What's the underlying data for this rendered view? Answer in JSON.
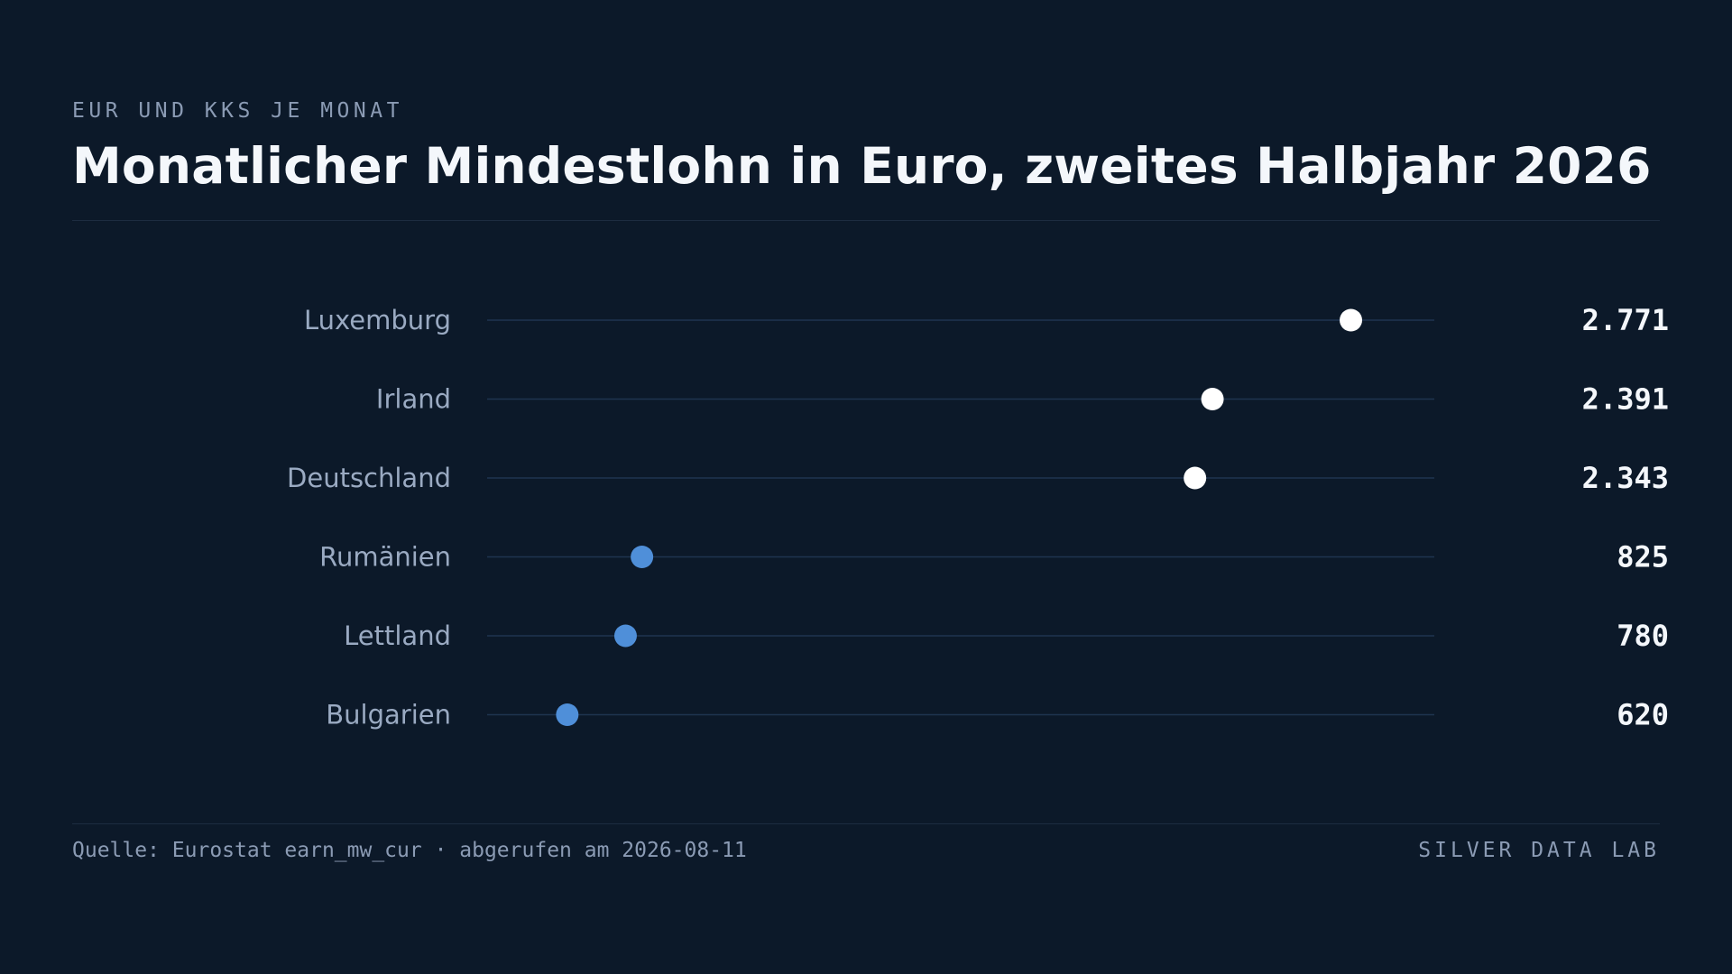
{
  "header": {
    "eyebrow": "EUR UND KKS JE MONAT",
    "title": "Monatlicher Mindestlohn in Euro, zweites Halbjahr 2026"
  },
  "chart_data": {
    "type": "dot",
    "categories": [
      "Luxemburg",
      "Irland",
      "Deutschland",
      "Rumänien",
      "Lettland",
      "Bulgarien"
    ],
    "values": [
      2771,
      2391,
      2343,
      825,
      780,
      620
    ],
    "value_labels": [
      "2.771",
      "2.391",
      "2.343",
      "825",
      "780",
      "620"
    ],
    "xlim": [
      400,
      3000
    ],
    "grid": false,
    "colors": {
      "high": "#ffffff",
      "low": "#4f8fd9",
      "track": "#1f3450",
      "category_label": "#9aaac2",
      "value_label": "#f4f7fb"
    },
    "highlight_threshold": 2000
  },
  "footer": {
    "source": "Quelle: Eurostat earn_mw_cur · abgerufen am 2026-08-11",
    "brand": "SILVER DATA LAB"
  }
}
